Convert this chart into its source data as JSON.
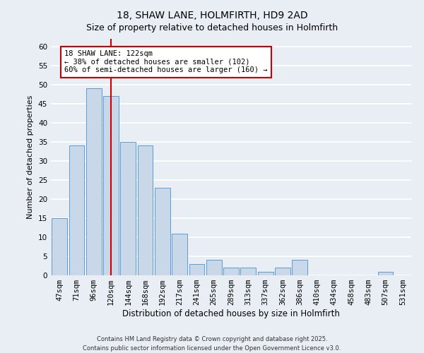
{
  "title": "18, SHAW LANE, HOLMFIRTH, HD9 2AD",
  "subtitle": "Size of property relative to detached houses in Holmfirth",
  "xlabel": "Distribution of detached houses by size in Holmfirth",
  "ylabel": "Number of detached properties",
  "categories": [
    "47sqm",
    "71sqm",
    "96sqm",
    "120sqm",
    "144sqm",
    "168sqm",
    "192sqm",
    "217sqm",
    "241sqm",
    "265sqm",
    "289sqm",
    "313sqm",
    "337sqm",
    "362sqm",
    "386sqm",
    "410sqm",
    "434sqm",
    "458sqm",
    "483sqm",
    "507sqm",
    "531sqm"
  ],
  "values": [
    15,
    34,
    49,
    47,
    35,
    34,
    23,
    11,
    3,
    4,
    2,
    2,
    1,
    2,
    4,
    0,
    0,
    0,
    0,
    1,
    0
  ],
  "bar_color": "#c8d8e8",
  "bar_edge_color": "#5b9bd5",
  "vline_index": 3,
  "vline_color": "#cc0000",
  "annotation_text": "18 SHAW LANE: 122sqm\n← 38% of detached houses are smaller (102)\n60% of semi-detached houses are larger (160) →",
  "annotation_box_color": "#ffffff",
  "annotation_box_edge_color": "#cc0000",
  "ylim": [
    0,
    62
  ],
  "yticks": [
    0,
    5,
    10,
    15,
    20,
    25,
    30,
    35,
    40,
    45,
    50,
    55,
    60
  ],
  "background_color": "#e8eef4",
  "grid_color": "#ffffff",
  "footer_text": "Contains HM Land Registry data © Crown copyright and database right 2025.\nContains public sector information licensed under the Open Government Licence v3.0.",
  "title_fontsize": 10,
  "subtitle_fontsize": 9,
  "xlabel_fontsize": 8.5,
  "ylabel_fontsize": 8,
  "tick_fontsize": 7.5,
  "annotation_fontsize": 7.5,
  "footer_fontsize": 6
}
